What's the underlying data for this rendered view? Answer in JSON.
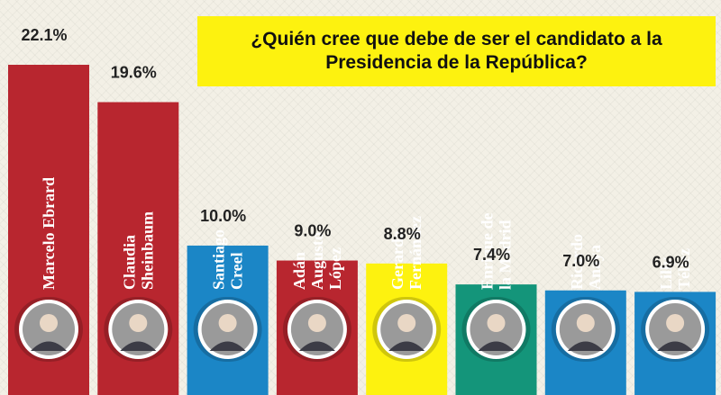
{
  "title": "¿Quién cree que debe de ser el candidato a la Presidencia de la República?",
  "colors": {
    "red": "#b8262f",
    "blue": "#1b86c6",
    "yellow": "#fdf20f",
    "green": "#14957a",
    "title_box": "#fdf20f",
    "background": "#f3f0e6"
  },
  "chart_data": {
    "type": "bar",
    "title": "¿Quién cree que debe de ser el candidato a la Presidencia de la República?",
    "xlabel": "",
    "ylabel": "",
    "grid": false,
    "legend": "none",
    "value_suffix": "%",
    "categories": [
      "Marcelo Ebrard",
      "Claudia Sheinbaum",
      "Santiago Creel",
      "Adán Augusto López",
      "Gerardo Fernández",
      "Enrique de la Madrid",
      "Ricardo Anaya",
      "Lilly Téllez"
    ],
    "values": [
      22.1,
      19.6,
      10.0,
      9.0,
      8.8,
      7.4,
      7.0,
      6.9
    ],
    "value_labels": [
      "22.1%",
      "19.6%",
      "10.0%",
      "9.0%",
      "8.8%",
      "7.4%",
      "7.0%",
      "6.9%"
    ],
    "bar_text_lines": [
      [
        "Marcelo Ebrard"
      ],
      [
        "Claudia",
        "Sheinbaum"
      ],
      [
        "Santiago",
        "Creel"
      ],
      [
        "Adán",
        "Augusto",
        "López"
      ],
      [
        "Gerardo",
        "Fernández"
      ],
      [
        "Enrique de",
        "la Madrid"
      ],
      [
        "Ricardo",
        "Anaya"
      ],
      [
        "Lilly",
        "Téllez"
      ]
    ],
    "bar_colors": [
      "#b8262f",
      "#b8262f",
      "#1b86c6",
      "#b8262f",
      "#fdf20f",
      "#14957a",
      "#1b86c6",
      "#1b86c6"
    ],
    "text_colors": [
      "#ffffff",
      "#ffffff",
      "#ffffff",
      "#ffffff",
      "#ffffff",
      "#ffffff",
      "#ffffff",
      "#ffffff"
    ]
  }
}
